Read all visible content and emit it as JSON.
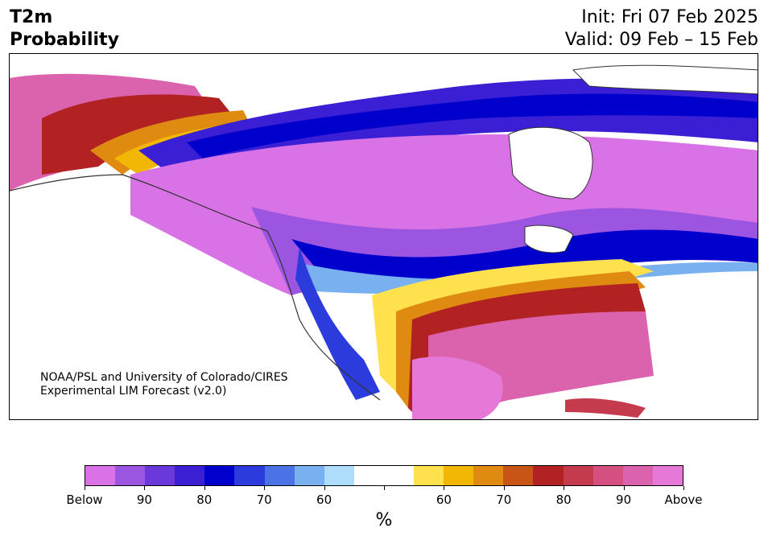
{
  "header": {
    "title_line1": "T2m",
    "title_line2": "Probability",
    "init_line": "Init: Fri 07 Feb 2025",
    "valid_line": "Valid: 09 Feb – 15 Feb"
  },
  "credit": {
    "line1": "NOAA/PSL and University of Colorado/CIRES",
    "line2": "Experimental LIM Forecast (v2.0)"
  },
  "colorbar": {
    "colors": [
      "#d972e6",
      "#9b55e0",
      "#6b38db",
      "#3a1fd4",
      "#0000cc",
      "#2b3bdc",
      "#4c73e6",
      "#78b0f0",
      "#aedcfb",
      "#ffffff",
      "#ffffff",
      "#ffe14d",
      "#f2b705",
      "#df8a10",
      "#c85515",
      "#b22222",
      "#c63a4e",
      "#d55080",
      "#db63ad",
      "#e679d8"
    ],
    "tick_labels": [
      "Below",
      "90",
      "80",
      "70",
      "60",
      "",
      "60",
      "70",
      "80",
      "90",
      "Above"
    ],
    "unit": "%"
  },
  "map": {
    "region": "North America",
    "legend_meaning": "Below normal (purple/blue) vs Above normal (yellow/red/pink) temperature probability"
  }
}
